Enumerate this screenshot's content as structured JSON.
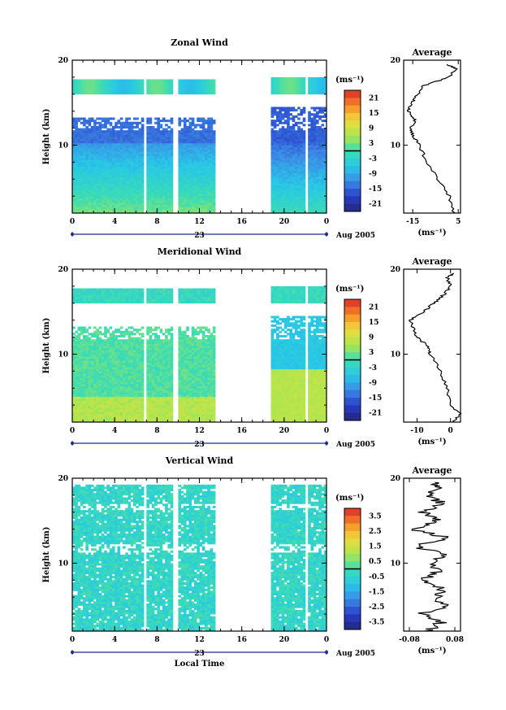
{
  "chart_data": [
    {
      "type": "heatmap",
      "title": "Zonal Wind",
      "ylabel": "Height (km)",
      "ylim": [
        2,
        20
      ],
      "yticks": [
        "10",
        "20"
      ],
      "xticks": [
        "0",
        "4",
        "8",
        "12",
        "16",
        "20",
        "0"
      ],
      "xlim_hours": [
        0,
        24
      ],
      "date_label": "23",
      "date_suffix": "Aug 2005",
      "colorbar": {
        "unit": "(ms⁻¹)",
        "ticks": [
          "21",
          "15",
          "9",
          "3",
          "-3",
          "-9",
          "-15",
          "-21"
        ],
        "range": [
          -24,
          24
        ]
      },
      "data_gaps_hours": [
        [
          6.8,
          7.1
        ],
        [
          9.6,
          9.9
        ],
        [
          13.5,
          18.7
        ],
        [
          22.0,
          22.3
        ]
      ],
      "average": {
        "title": "Average",
        "xticks": [
          "-15",
          "5"
        ],
        "xlim": [
          -19,
          6
        ],
        "unit": "(ms⁻¹)",
        "height_km": [
          2,
          4,
          6,
          8,
          10,
          11,
          12,
          13,
          14,
          15,
          16,
          17,
          18,
          19,
          19.5
        ],
        "values": [
          3,
          1,
          -4,
          -9,
          -12,
          -15,
          -16,
          -14,
          -17,
          -15,
          -13,
          -10,
          1,
          4,
          0
        ]
      }
    },
    {
      "type": "heatmap",
      "title": "Meridional Wind",
      "ylabel": "Height (km)",
      "ylim": [
        2,
        20
      ],
      "yticks": [
        "10",
        "20"
      ],
      "xticks": [
        "0",
        "4",
        "8",
        "12",
        "16",
        "20",
        "0"
      ],
      "xlim_hours": [
        0,
        24
      ],
      "date_label": "23",
      "date_suffix": "Aug 2005",
      "colorbar": {
        "unit": "(ms⁻¹)",
        "ticks": [
          "21",
          "15",
          "9",
          "3",
          "-3",
          "-9",
          "-15",
          "-21"
        ],
        "range": [
          -24,
          24
        ]
      },
      "data_gaps_hours": [
        [
          6.8,
          7.1
        ],
        [
          9.6,
          9.9
        ],
        [
          13.5,
          18.7
        ],
        [
          22.0,
          22.3
        ]
      ],
      "average": {
        "title": "Average",
        "xticks": [
          "-10",
          "0"
        ],
        "xlim": [
          -14,
          3
        ],
        "unit": "(ms⁻¹)",
        "height_km": [
          2,
          3,
          4,
          6,
          8,
          10,
          11,
          12,
          13,
          14,
          15,
          16,
          17,
          18,
          19,
          19.5
        ],
        "values": [
          1,
          3,
          0,
          -1,
          -3,
          -6,
          -7,
          -10,
          -11,
          -12,
          -8,
          -5,
          -2,
          0,
          -1,
          1
        ]
      }
    },
    {
      "type": "heatmap",
      "title": "Vertical Wind",
      "ylabel": "Height (km)",
      "xlabel": "Local Time",
      "ylim": [
        2,
        20
      ],
      "yticks": [
        "10",
        "20"
      ],
      "xticks": [
        "0",
        "4",
        "8",
        "12",
        "16",
        "20",
        "0"
      ],
      "xlim_hours": [
        0,
        24
      ],
      "date_label": "23",
      "date_suffix": "Aug 2005",
      "colorbar": {
        "unit": "(ms⁻¹)",
        "ticks": [
          "3.5",
          "2.5",
          "1.5",
          "0.5",
          "-0.5",
          "-1.5",
          "-2.5",
          "-3.5"
        ],
        "range": [
          -4,
          4
        ]
      },
      "data_gaps_hours": [
        [
          6.8,
          7.1
        ],
        [
          9.6,
          9.9
        ],
        [
          13.5,
          18.7
        ],
        [
          22.0,
          22.3
        ]
      ],
      "average": {
        "title": "Average",
        "xticks": [
          "-0.08",
          "0.08"
        ],
        "xlim": [
          -0.1,
          0.1
        ],
        "unit": "(ms⁻¹)",
        "height_km": [
          2,
          3,
          4,
          5,
          6,
          7,
          8,
          9,
          10,
          11,
          12,
          13,
          14,
          15,
          16,
          17,
          18,
          19,
          19.5
        ],
        "values": [
          -0.02,
          0.03,
          -0.04,
          0.05,
          0.01,
          0.04,
          -0.03,
          0.02,
          -0.01,
          0.04,
          -0.06,
          0.05,
          -0.07,
          0.02,
          -0.03,
          0.04,
          -0.02,
          0.03,
          0.01
        ]
      }
    }
  ]
}
